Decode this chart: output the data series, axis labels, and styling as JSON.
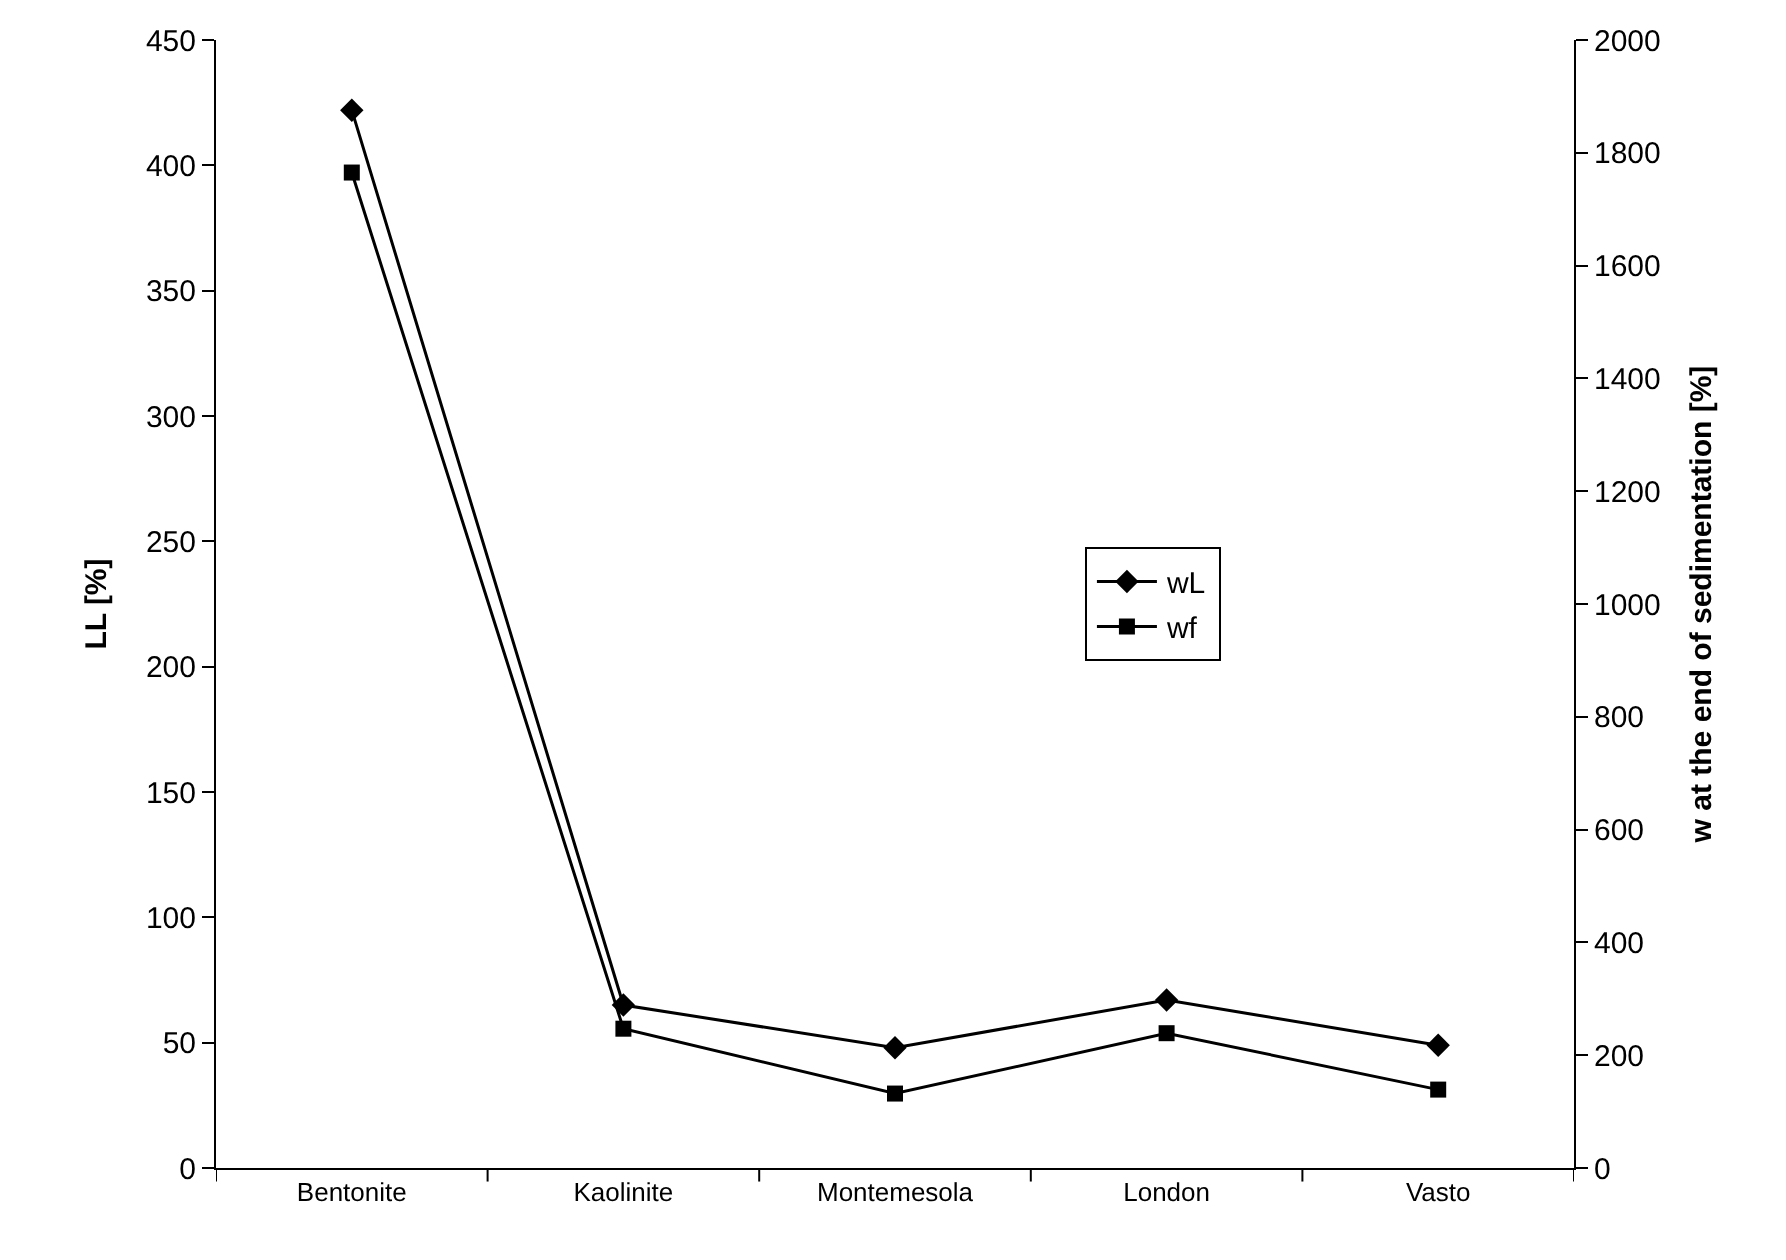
{
  "chart_data": {
    "type": "line",
    "ylabel": "LL [%]",
    "y2label": "w at the end of sedimentation [%]",
    "categories": [
      "Bentonite",
      "Kaolinite",
      "Montemesola",
      "London",
      "Vasto"
    ],
    "series": [
      {
        "name": "wL",
        "color": "#000000",
        "values": [
          422,
          65,
          48,
          67,
          49
        ],
        "marker": "diamond"
      },
      {
        "name": "wf",
        "color": "#000000",
        "values": [
          1765,
          247,
          132,
          239,
          139
        ],
        "marker": "square",
        "axis": "y2"
      }
    ],
    "ylim": [
      0,
      450
    ],
    "yticks": [
      0,
      50,
      100,
      150,
      200,
      250,
      300,
      350,
      400,
      450
    ],
    "y2lim": [
      0,
      2000
    ],
    "y2ticks": [
      0,
      200,
      400,
      600,
      800,
      1000,
      1200,
      1400,
      1600,
      1800,
      2000
    ],
    "legend": "right",
    "line_style": "solid"
  }
}
